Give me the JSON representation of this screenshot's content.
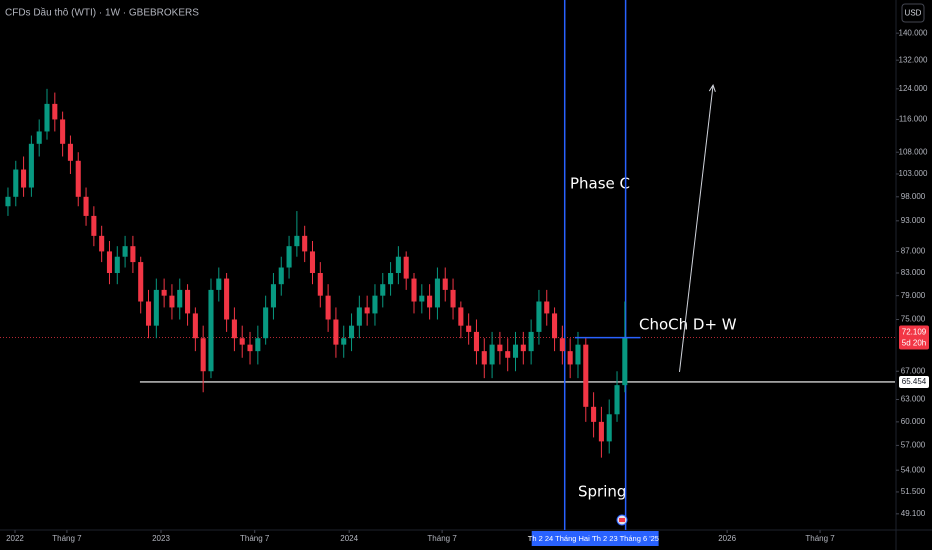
{
  "chart_data": {
    "type": "candlestick",
    "title": "CFDs Dầu thô (WTI) · 1W · GBEBROKERS",
    "currency": "USD",
    "open": [
      96,
      98,
      104,
      100,
      110,
      113,
      120,
      116,
      110,
      106,
      98,
      94,
      90,
      87,
      83,
      86,
      88,
      85,
      78,
      74,
      80,
      79,
      77,
      80,
      76,
      72,
      67,
      80,
      82,
      75,
      72,
      71,
      70,
      72,
      77,
      81,
      84,
      88,
      90,
      87,
      83,
      79,
      75,
      71,
      72,
      74,
      77,
      76,
      79,
      81,
      83,
      86,
      82,
      78,
      79,
      77,
      82,
      80,
      77,
      74,
      73,
      70,
      68,
      71,
      70,
      69,
      71,
      70,
      73,
      78,
      76,
      72,
      70,
      68,
      71,
      62,
      60,
      57.5,
      61,
      65
    ],
    "high": [
      100,
      106,
      107,
      112,
      116,
      124,
      123,
      118,
      112,
      108,
      100,
      96,
      92,
      89,
      88,
      90,
      90,
      86,
      80,
      82,
      82,
      81,
      82,
      81,
      77,
      74,
      82,
      84,
      83,
      77,
      74,
      73,
      74,
      79,
      83,
      86,
      90,
      95,
      92,
      89,
      85,
      81,
      77,
      74,
      76,
      79,
      79,
      81,
      83,
      85,
      88,
      87,
      83,
      81,
      81,
      84,
      84,
      82,
      78,
      76,
      75,
      72,
      73,
      73,
      72,
      73,
      73,
      75,
      80,
      80,
      77,
      74,
      72,
      73,
      72,
      64,
      62,
      63,
      67,
      78
    ],
    "low": [
      94,
      96,
      98,
      98,
      107,
      111,
      113,
      107,
      103,
      96,
      92,
      88,
      85,
      81,
      81,
      84,
      83,
      76,
      72,
      72,
      77,
      75,
      75,
      74,
      70,
      64,
      66,
      78,
      73,
      70,
      69,
      68,
      68,
      71,
      75,
      79,
      82,
      86,
      85,
      81,
      77,
      73,
      69,
      69,
      70,
      72,
      74,
      74,
      77,
      79,
      81,
      80,
      76,
      76,
      75,
      75,
      78,
      75,
      72,
      71,
      68,
      66,
      66,
      68,
      67,
      67,
      68,
      68,
      71,
      74,
      70,
      68,
      66,
      66,
      60,
      58,
      55.5,
      56,
      60,
      64
    ],
    "close": [
      98,
      104,
      100,
      110,
      113,
      120,
      116,
      110,
      106,
      98,
      94,
      90,
      87,
      83,
      86,
      88,
      85,
      78,
      74,
      80,
      79,
      77,
      80,
      76,
      72,
      67,
      80,
      82,
      75,
      72,
      71,
      70,
      72,
      77,
      81,
      84,
      88,
      90,
      87,
      83,
      79,
      75,
      71,
      72,
      74,
      77,
      76,
      79,
      81,
      83,
      86,
      82,
      78,
      79,
      77,
      82,
      80,
      77,
      74,
      73,
      70,
      68,
      71,
      70,
      69,
      71,
      70,
      73,
      78,
      76,
      72,
      70,
      68,
      71,
      62,
      60,
      57.5,
      61,
      65,
      72.1
    ],
    "up_color": "#089981",
    "down_color": "#f23645",
    "log_scale": true,
    "ylim": [
      47.4,
      150.5
    ],
    "yticks": [
      {
        "value": 140,
        "label": "140.000"
      },
      {
        "value": 132,
        "label": "132.000"
      },
      {
        "value": 124,
        "label": "124.000"
      },
      {
        "value": 116,
        "label": "116.000"
      },
      {
        "value": 108,
        "label": "108.000"
      },
      {
        "value": 103,
        "label": "103.000"
      },
      {
        "value": 98,
        "label": "98.000"
      },
      {
        "value": 93,
        "label": "93.000"
      },
      {
        "value": 87,
        "label": "87.000"
      },
      {
        "value": 83,
        "label": "83.000"
      },
      {
        "value": 79,
        "label": "79.000"
      },
      {
        "value": 75,
        "label": "75.000"
      },
      {
        "value": 67,
        "label": "67.000"
      },
      {
        "value": 63,
        "label": "63.000"
      },
      {
        "value": 60,
        "label": "60.000"
      },
      {
        "value": 57,
        "label": "57.000"
      },
      {
        "value": 54,
        "label": "54.000"
      },
      {
        "value": 51.5,
        "label": "51.500"
      },
      {
        "value": 49.1,
        "label": "49.100"
      }
    ],
    "xlim": [
      -1.02,
      113.6
    ],
    "xticks": [
      {
        "value": 0.9,
        "label": "2022"
      },
      {
        "value": 7.55,
        "label": "Tháng 7"
      },
      {
        "value": 19.6,
        "label": "2023"
      },
      {
        "value": 31.6,
        "label": "Tháng 7"
      },
      {
        "value": 43.7,
        "label": "2024"
      },
      {
        "value": 55.6,
        "label": "Tháng 7"
      },
      {
        "value": 92.1,
        "label": "2026"
      },
      {
        "value": 104,
        "label": "Tháng 7"
      }
    ],
    "range_markers": [
      {
        "value": 71.3,
        "label": "Th 2 24 Tháng Hai '25"
      },
      {
        "value": 79.1,
        "label": "Th 2 23 Tháng 6 '25"
      }
    ],
    "last_price": {
      "value": 72.109,
      "label": "72.109",
      "countdown": "5d 20h"
    },
    "level": {
      "value": 65.454,
      "label": "65.454",
      "from": 16.9
    },
    "choch_level": {
      "value": 72.1,
      "from": 72.6,
      "to": 81
    },
    "arrow": {
      "x": [
        86,
        90.3
      ],
      "y": [
        66.9,
        125
      ]
    },
    "annotations": {
      "phase": "Phase C",
      "choch": "ChoCh D+ W",
      "spring": "Spring"
    }
  }
}
